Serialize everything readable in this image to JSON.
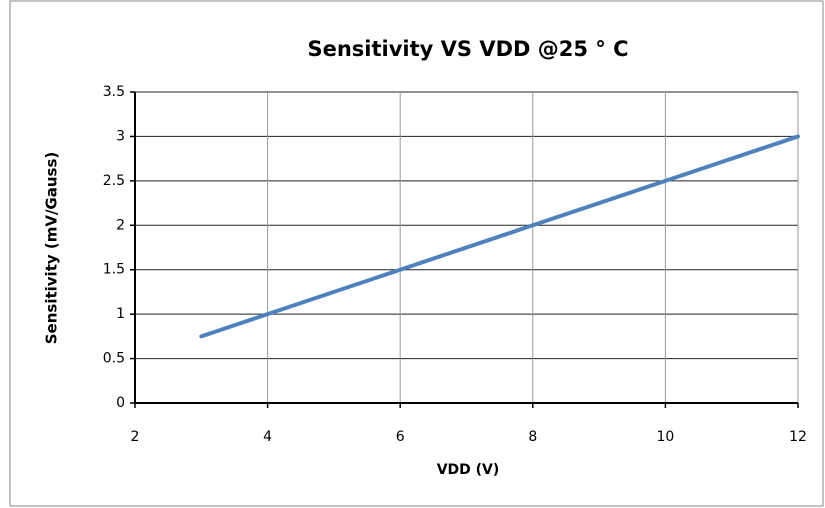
{
  "chart_data": {
    "type": "line",
    "title": "Sensitivity VS VDD @25 ° C",
    "x_label": "VDD (V)",
    "y_label": "Sensitivity (mV/Gauss)",
    "x": [
      3,
      4,
      6,
      8,
      10,
      12
    ],
    "values": [
      0.75,
      1,
      1.5,
      2,
      2.5,
      3
    ],
    "color": "#4f81bd",
    "xlim": [
      2,
      12
    ],
    "xticks": [
      2,
      4,
      6,
      8,
      10,
      12
    ],
    "ylim": [
      0,
      3.5
    ],
    "yticks": [
      0,
      0.5,
      1,
      1.5,
      2,
      2.5,
      3,
      3.5
    ],
    "grid": true
  }
}
